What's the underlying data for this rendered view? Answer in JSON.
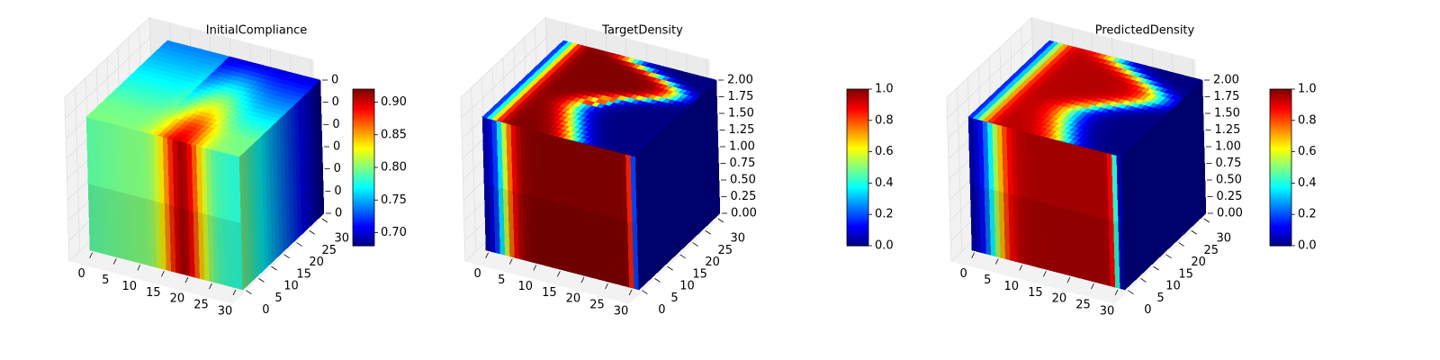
{
  "colormap": "jet",
  "colors": {
    "background": "#ffffff",
    "pane": "#f2f2f2",
    "grid": "#d9d9d9",
    "axis": "#000000"
  },
  "chart_data": [
    {
      "type": "heatmap",
      "subtype": "3d-voxel-cube",
      "title": "InitialCompliance",
      "x_ticks": [
        "0",
        "5",
        "10",
        "15",
        "20",
        "25",
        "30"
      ],
      "y_ticks": [
        "0",
        "5",
        "10",
        "15",
        "20",
        "25",
        "30"
      ],
      "z_ticks": [
        "0",
        "0",
        "0",
        "0",
        "0",
        "0",
        "0"
      ],
      "xlim": [
        0,
        32
      ],
      "ylim": [
        0,
        32
      ],
      "colorbar": {
        "ticks": [
          "0.70",
          "0.75",
          "0.80",
          "0.85",
          "0.90"
        ],
        "range": [
          0.68,
          0.92
        ]
      },
      "field": "compliance",
      "z_layers": 2
    },
    {
      "type": "heatmap",
      "subtype": "3d-voxel-cube",
      "title": "TargetDensity",
      "x_ticks": [
        "0",
        "5",
        "10",
        "15",
        "20",
        "25",
        "30"
      ],
      "y_ticks": [
        "0",
        "5",
        "10",
        "15",
        "20",
        "25",
        "30"
      ],
      "z_ticks": [
        "0.00",
        "0.25",
        "0.50",
        "0.75",
        "1.00",
        "1.25",
        "1.50",
        "1.75",
        "2.00"
      ],
      "xlim": [
        0,
        32
      ],
      "ylim": [
        0,
        32
      ],
      "zlim": [
        0,
        2
      ],
      "colorbar": {
        "ticks": [
          "0.0",
          "0.2",
          "0.4",
          "0.6",
          "0.8",
          "1.0"
        ],
        "range": [
          0,
          1
        ]
      },
      "field": "target",
      "z_layers": 2
    },
    {
      "type": "heatmap",
      "subtype": "3d-voxel-cube",
      "title": "PredictedDensity",
      "x_ticks": [
        "0",
        "5",
        "10",
        "15",
        "20",
        "25",
        "30"
      ],
      "y_ticks": [
        "0",
        "5",
        "10",
        "15",
        "20",
        "25",
        "30"
      ],
      "z_ticks": [
        "0.00",
        "0.25",
        "0.50",
        "0.75",
        "1.00",
        "1.25",
        "1.50",
        "1.75",
        "2.00"
      ],
      "xlim": [
        0,
        32
      ],
      "ylim": [
        0,
        32
      ],
      "zlim": [
        0,
        2
      ],
      "colorbar": {
        "ticks": [
          "0.0",
          "0.2",
          "0.4",
          "0.6",
          "0.8",
          "1.0"
        ],
        "range": [
          0,
          1
        ]
      },
      "field": "predicted",
      "z_layers": 2
    }
  ]
}
